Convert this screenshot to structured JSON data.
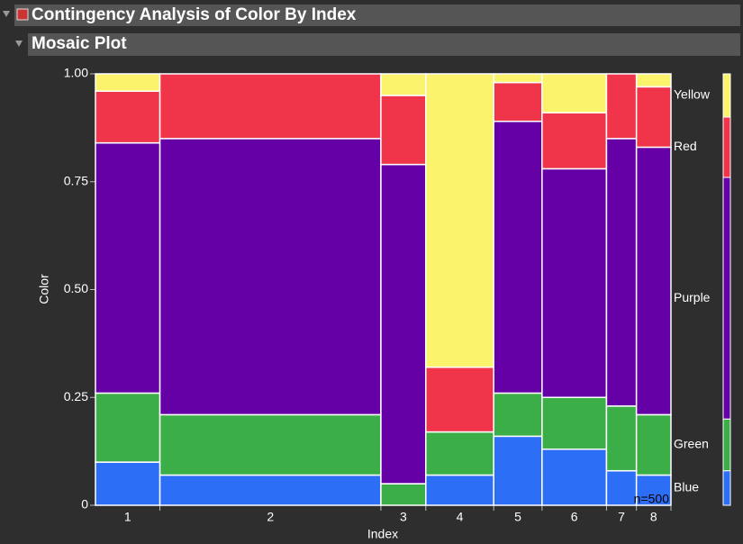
{
  "chart_data": {
    "type": "mosaic",
    "title": "Contingency Analysis of Color By Index",
    "subtitle": "Mosaic Plot",
    "x_label": "Index",
    "y_label": "Color",
    "annotation": "n=500",
    "categories": [
      "1",
      "2",
      "3",
      "4",
      "5",
      "6",
      "7",
      "8"
    ],
    "widths": [
      0.112,
      0.384,
      0.078,
      0.118,
      0.084,
      0.112,
      0.052,
      0.06
    ],
    "ylim": [
      0,
      1
    ],
    "yticks": [
      0,
      0.25,
      {
        "value": 0.5,
        "label": "0.50"
      },
      0.75,
      {
        "value": 1,
        "label": "1.00"
      }
    ],
    "series": [
      {
        "name": "Blue",
        "color": "#2d6ef6",
        "overall": 0.08,
        "values": [
          0.1,
          0.07,
          0,
          0.07,
          0.16,
          0.13,
          0.08,
          0.07
        ]
      },
      {
        "name": "Green",
        "color": "#3cae48",
        "overall": 0.12,
        "values": [
          0.16,
          0.14,
          0.05,
          0.1,
          0.1,
          0.12,
          0.15,
          0.14
        ]
      },
      {
        "name": "Purple",
        "color": "#6500a6",
        "overall": 0.56,
        "values": [
          0.58,
          0.64,
          0.74,
          0,
          0.63,
          0.53,
          0.62,
          0.62
        ]
      },
      {
        "name": "Red",
        "color": "#f0344a",
        "overall": 0.14,
        "values": [
          0.12,
          0.15,
          0.16,
          0.15,
          0.09,
          0.13,
          0.15,
          0.14
        ]
      },
      {
        "name": "Yellow",
        "color": "#fbf36c",
        "overall": 0.1,
        "values": [
          0.04,
          0,
          0.05,
          0.68,
          0.02,
          0.09,
          0,
          0.03
        ]
      }
    ]
  }
}
